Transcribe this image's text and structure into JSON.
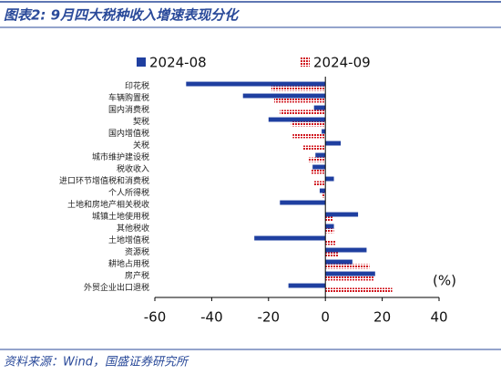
{
  "chart_data": {
    "type": "hbar",
    "title": "图表2:  9月四大税种收入增速表现分化",
    "source": "资料来源：Wind，国盛证券研究所",
    "annotation": "(%)",
    "categories": [
      "印花税",
      "车辆购置税",
      "国内消费税",
      "契税",
      "国内增值税",
      "关税",
      "城市维护建设税",
      "税收收入",
      "进口环节增值税和消费税",
      "个人所得税",
      "土地和房地产相关税收",
      "城镇土地使用税",
      "其他税收",
      "土地增值税",
      "资源税",
      "耕地占用税",
      "房产税",
      "外贸企业出口退税"
    ],
    "series": [
      {
        "name": "2024-08",
        "color": "#1f3fa0",
        "values": [
          -49,
          -29,
          -4,
          -20,
          -1.3,
          5.4,
          -3.5,
          -4.5,
          3,
          -2,
          -16,
          11.5,
          3,
          -25,
          14.5,
          9.5,
          17.5,
          -13
        ]
      },
      {
        "name": "2024-09",
        "color": "#d0161e",
        "hatched": true,
        "values": [
          -19,
          -18,
          -16,
          -12,
          -11.5,
          -8,
          -6,
          -5,
          -4,
          -1,
          0,
          2.5,
          3,
          3.5,
          4.5,
          15.5,
          17,
          23.5
        ]
      }
    ],
    "xlim": [
      -60,
      40
    ],
    "xticks": [
      -60,
      -40,
      -20,
      0,
      20,
      40
    ],
    "grid": false
  }
}
